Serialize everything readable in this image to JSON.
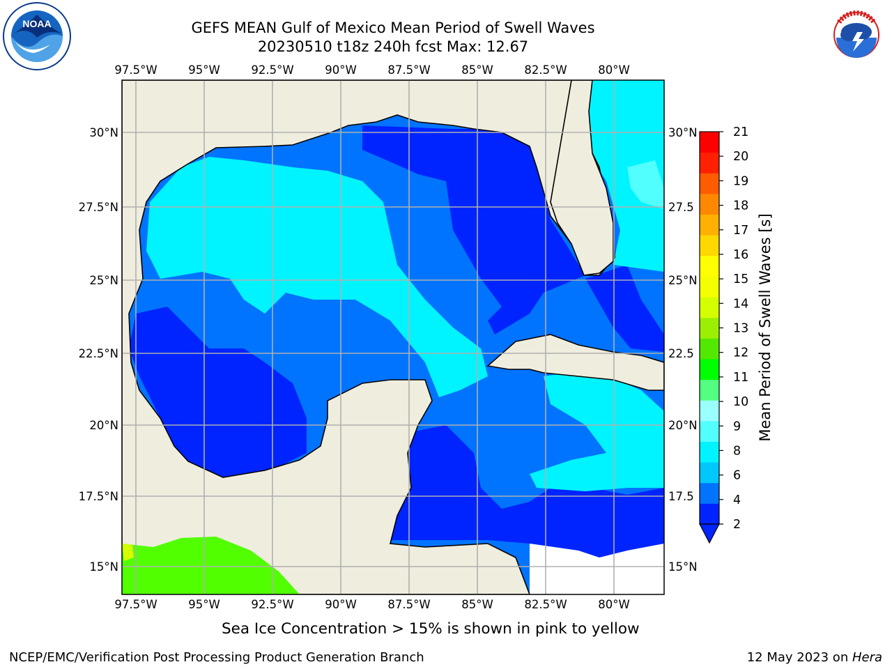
{
  "header": {
    "title_line1": "GEFS MEAN Gulf of Mexico Mean Period of Swell Waves",
    "title_line2": "20230510 t18z 240h fcst   Max: 12.67"
  },
  "logos": {
    "left": {
      "name": "NOAA",
      "ring_text": "NATIONAL OCEANIC AND ATMOSPHERIC ADMINISTRATION · U.S. DEPARTMENT OF COMMERCE"
    },
    "right": {
      "name": "NATIONAL WEATHER SERVICE"
    }
  },
  "map": {
    "longitude_ticks": [
      "97.5°W",
      "95°W",
      "92.5°W",
      "90°W",
      "87.5°W",
      "85°W",
      "82.5°W",
      "80°W"
    ],
    "latitude_ticks_left": [
      "30°N",
      "27.5°N",
      "25°N",
      "22.5°N",
      "20°N",
      "17.5°N",
      "15°N"
    ],
    "latitude_ticks_right": [
      "30°N",
      "27.5",
      "25°N",
      "22.5",
      "20°N",
      "17.5",
      "15°N"
    ],
    "land_color": "#efedde",
    "grid_color": "#b0b0b0"
  },
  "colorbar": {
    "label": "Mean Period of Swell Waves [s]",
    "ticks": [
      "2",
      "4",
      "6",
      "8",
      "9",
      "10",
      "11",
      "12",
      "13",
      "14",
      "15",
      "16",
      "17",
      "18",
      "19",
      "20",
      "21"
    ],
    "colors": [
      "#0024ff",
      "#0074ff",
      "#00c8ff",
      "#00f4ff",
      "#52ffff",
      "#9affff",
      "#52ff80",
      "#00ff00",
      "#52e800",
      "#9af000",
      "#d4ff00",
      "#f4ff00",
      "#ffff00",
      "#ffd800",
      "#ffb000",
      "#ff8800",
      "#ff5c00",
      "#ff2000",
      "#ff0000"
    ]
  },
  "footer": {
    "note": "Sea Ice Concentration > 15% is shown in pink to yellow",
    "left": "NCEP/EMC/Verification Post Processing Product Generation Branch",
    "right_date": "12 May 2023 on ",
    "right_host": "Hera"
  }
}
